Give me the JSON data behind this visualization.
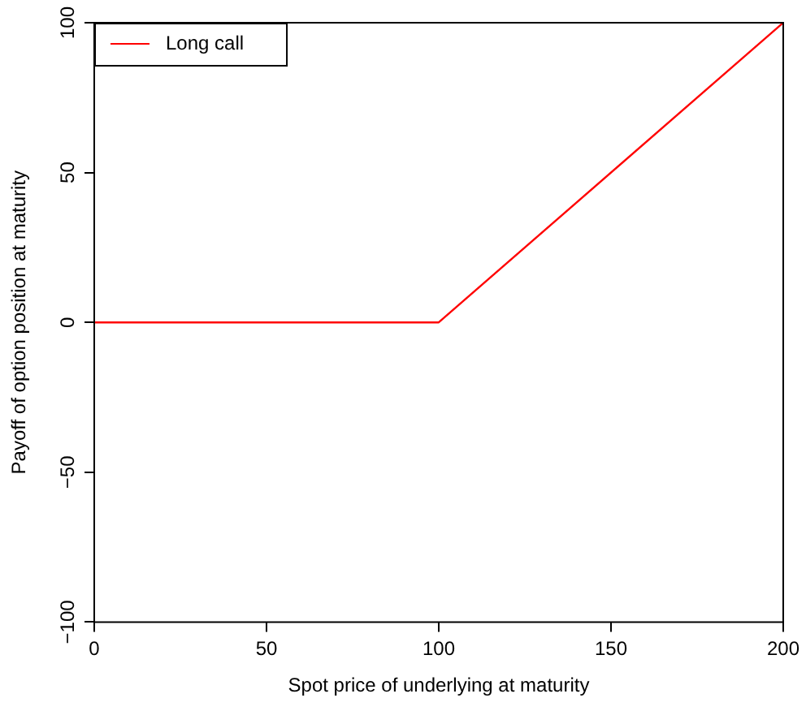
{
  "chart_data": {
    "type": "line",
    "xlabel": "Spot price of underlying at maturity",
    "ylabel": "Payoff of option position at maturity",
    "x": [
      0,
      100,
      200
    ],
    "series": [
      {
        "name": "Long call",
        "color": "#ff0000",
        "values": [
          0,
          0,
          100
        ]
      }
    ],
    "xlim": [
      0,
      200
    ],
    "xticks": [
      0,
      50,
      100,
      150,
      200
    ],
    "ylim": [
      -100,
      100
    ],
    "yticks": [
      -100,
      -50,
      0,
      50,
      100
    ],
    "grid": false,
    "legend": "top left",
    "marker": "none",
    "line_style": "solid"
  }
}
